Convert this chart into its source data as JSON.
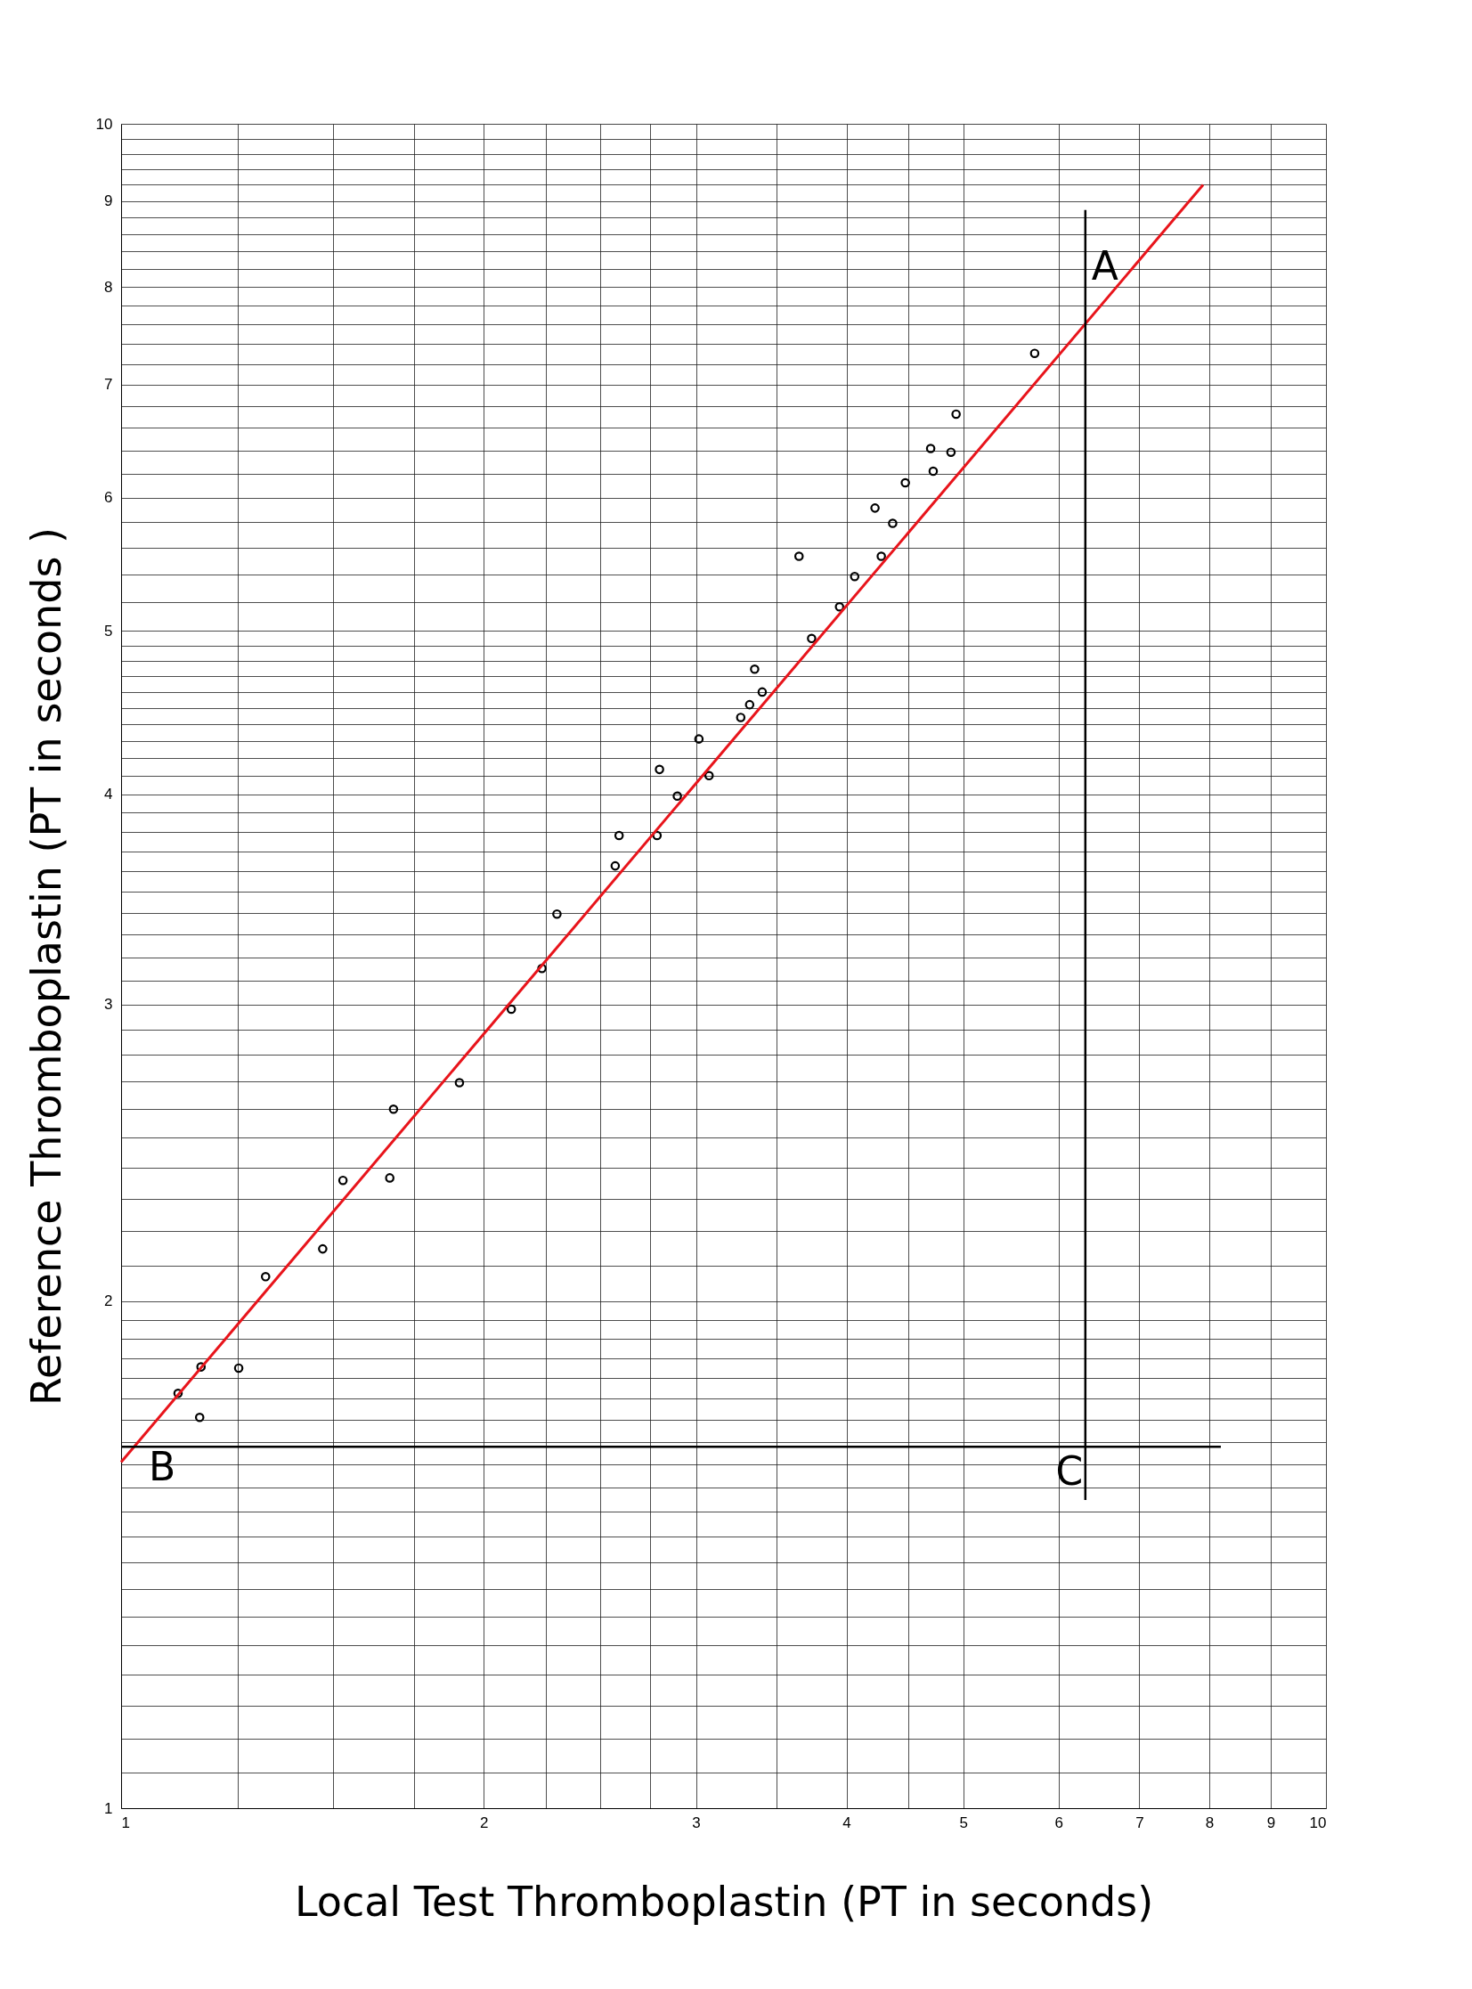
{
  "chart_data": {
    "type": "scatter",
    "xlabel": "Local Test Thromboplastin (PT in seconds)",
    "ylabel": "Reference Thromboplastin (PT in seconds )",
    "log": "xy",
    "grid": true,
    "xlim": [
      1,
      10
    ],
    "ylim": [
      1,
      10
    ],
    "xticks": [
      1,
      {
        "value": 1.25,
        "label": null
      },
      {
        "value": 1.5,
        "label": null
      },
      {
        "value": 1.75,
        "label": null
      },
      2,
      {
        "value": 2.25,
        "label": null
      },
      {
        "value": 2.5,
        "label": null
      },
      {
        "value": 2.75,
        "label": null
      },
      3,
      {
        "value": 3.5,
        "label": null
      },
      4,
      {
        "value": 4.5,
        "label": null
      },
      5,
      6,
      7,
      8,
      9,
      10
    ],
    "yticks": [
      1,
      {
        "value": 1.05,
        "label": null
      },
      {
        "value": 1.1,
        "label": null
      },
      {
        "value": 1.15,
        "label": null
      },
      {
        "value": 1.2,
        "label": null
      },
      {
        "value": 1.25,
        "label": null
      },
      {
        "value": 1.3,
        "label": null
      },
      {
        "value": 1.35,
        "label": null
      },
      {
        "value": 1.4,
        "label": null
      },
      {
        "value": 1.45,
        "label": null
      },
      {
        "value": 1.5,
        "label": null
      },
      {
        "value": 1.55,
        "label": null
      },
      {
        "value": 1.6,
        "label": null
      },
      {
        "value": 1.65,
        "label": null
      },
      {
        "value": 1.7,
        "label": null
      },
      {
        "value": 1.75,
        "label": null
      },
      {
        "value": 1.8,
        "label": null
      },
      {
        "value": 1.85,
        "label": null
      },
      {
        "value": 1.9,
        "label": null
      },
      {
        "value": 1.95,
        "label": null
      },
      2,
      {
        "value": 2.1,
        "label": null
      },
      {
        "value": 2.2,
        "label": null
      },
      {
        "value": 2.3,
        "label": null
      },
      {
        "value": 2.4,
        "label": null
      },
      {
        "value": 2.5,
        "label": null
      },
      {
        "value": 2.6,
        "label": null
      },
      {
        "value": 2.7,
        "label": null
      },
      {
        "value": 2.8,
        "label": null
      },
      {
        "value": 2.9,
        "label": null
      },
      3,
      {
        "value": 3.1,
        "label": null
      },
      {
        "value": 3.2,
        "label": null
      },
      {
        "value": 3.3,
        "label": null
      },
      {
        "value": 3.4,
        "label": null
      },
      {
        "value": 3.5,
        "label": null
      },
      {
        "value": 3.6,
        "label": null
      },
      {
        "value": 3.7,
        "label": null
      },
      {
        "value": 3.8,
        "label": null
      },
      {
        "value": 3.9,
        "label": null
      },
      4,
      {
        "value": 4.1,
        "label": null
      },
      {
        "value": 4.2,
        "label": null
      },
      {
        "value": 4.3,
        "label": null
      },
      {
        "value": 4.4,
        "label": null
      },
      {
        "value": 4.5,
        "label": null
      },
      {
        "value": 4.6,
        "label": null
      },
      {
        "value": 4.7,
        "label": null
      },
      {
        "value": 4.8,
        "label": null
      },
      {
        "value": 4.9,
        "label": null
      },
      5,
      {
        "value": 5.2,
        "label": null
      },
      {
        "value": 5.4,
        "label": null
      },
      {
        "value": 5.6,
        "label": null
      },
      {
        "value": 5.8,
        "label": null
      },
      6,
      {
        "value": 6.2,
        "label": null
      },
      {
        "value": 6.4,
        "label": null
      },
      {
        "value": 6.6,
        "label": null
      },
      {
        "value": 6.8,
        "label": null
      },
      7,
      {
        "value": 7.2,
        "label": null
      },
      {
        "value": 7.4,
        "label": null
      },
      {
        "value": 7.6,
        "label": null
      },
      {
        "value": 7.8,
        "label": null
      },
      8,
      {
        "value": 8.2,
        "label": null
      },
      {
        "value": 8.4,
        "label": null
      },
      {
        "value": 8.6,
        "label": null
      },
      {
        "value": 8.8,
        "label": null
      },
      9,
      {
        "value": 9.2,
        "label": null
      },
      {
        "value": 9.4,
        "label": null
      },
      {
        "value": 9.6,
        "label": null
      },
      {
        "value": 9.8,
        "label": null
      },
      10
    ],
    "series": [
      {
        "marker": "circle",
        "color": "#000000",
        "x": [
          1.115,
          1.165,
          1.162,
          1.252,
          1.318,
          1.47,
          1.528,
          1.671,
          1.683,
          1.909,
          2.108,
          2.235,
          2.3,
          2.571,
          2.59,
          2.785,
          2.798,
          2.895,
          3.017,
          3.076,
          3.268,
          3.324,
          3.356,
          3.405,
          3.653,
          3.742,
          3.947,
          4.063,
          4.224,
          4.275,
          4.369,
          4.476,
          4.698,
          4.721,
          4.884,
          4.932,
          5.731
        ],
        "values": [
          1.763,
          1.828,
          1.706,
          1.825,
          2.068,
          2.148,
          2.359,
          2.367,
          2.6,
          2.696,
          2.981,
          3.152,
          3.395,
          3.626,
          3.78,
          3.78,
          4.137,
          3.989,
          4.313,
          4.102,
          4.442,
          4.52,
          4.745,
          4.599,
          5.537,
          4.948,
          5.167,
          5.386,
          5.914,
          5.537,
          5.792,
          6.122,
          6.416,
          6.219,
          6.383,
          6.724,
          7.307
        ]
      },
      {
        "type": "line",
        "color": "#e8141b",
        "x": [
          1,
          7.907
        ],
        "values": [
          1.605,
          9.2
        ]
      },
      {
        "type": "line",
        "color": "#000000",
        "x": [
          6.314,
          6.314
        ],
        "values": [
          8.89,
          1.524
        ]
      },
      {
        "type": "line",
        "color": "#000000",
        "x": [
          1,
          8.18
        ],
        "values": [
          1.639,
          1.639
        ]
      }
    ],
    "annotations": [
      "A",
      "B",
      "C"
    ]
  }
}
